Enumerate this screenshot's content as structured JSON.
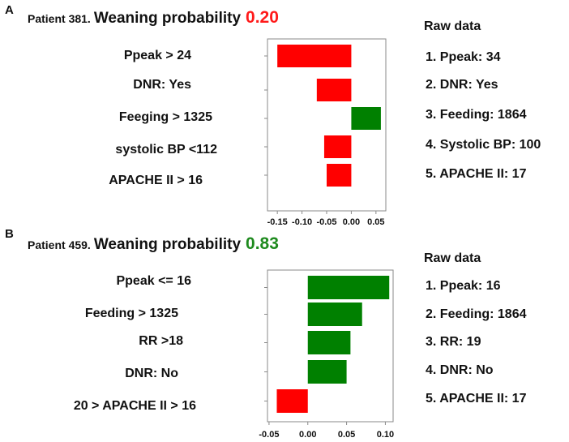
{
  "colors": {
    "negative": "#ff0000",
    "positive": "#008000",
    "frame": "#8a8a8a"
  },
  "panels": [
    {
      "letter": "A",
      "patient": "Patient 381.",
      "weaning_text": "Weaning probability",
      "probability": "0.20",
      "probability_color": "#ff1a1a",
      "features": [
        "Ppeak > 24",
        "DNR: Yes",
        "Feeging > 1325",
        "systolic BP <112",
        "APACHE II > 16"
      ],
      "raw_title": "Raw data",
      "raw_items": [
        "1. Ppeak: 34",
        "2. DNR: Yes",
        "3. Feeding: 1864",
        "4. Systolic BP: 100",
        "5. APACHE II: 17"
      ]
    },
    {
      "letter": "B",
      "patient": "Patient 459.",
      "weaning_text": "Weaning probability",
      "probability": "0.83",
      "probability_color": "#1e8a1e",
      "features": [
        "Ppeak <= 16",
        "Feeding > 1325",
        "RR >18",
        "DNR: No",
        "20 > APACHE II > 16"
      ],
      "raw_title": "Raw data",
      "raw_items": [
        "1. Ppeak: 16",
        "2. Feeding: 1864",
        "3. RR: 19",
        "4. DNR: No",
        "5. APACHE II: 17"
      ]
    }
  ],
  "chart_data": [
    {
      "type": "bar",
      "orientation": "horizontal",
      "categories": [
        "Ppeak > 24",
        "DNR: Yes",
        "Feeging > 1325",
        "systolic BP <112",
        "APACHE II > 16"
      ],
      "values": [
        -0.15,
        -0.07,
        0.06,
        -0.055,
        -0.05
      ],
      "xlim": [
        -0.17,
        0.07
      ],
      "xticks": [
        -0.15,
        -0.1,
        -0.05,
        0.0,
        0.05
      ],
      "xtick_labels": [
        "-0.15",
        "-0.10",
        "-0.05",
        "0.00",
        "0.05"
      ]
    },
    {
      "type": "bar",
      "orientation": "horizontal",
      "categories": [
        "Ppeak <= 16",
        "Feeding > 1325",
        "RR >18",
        "DNR: No",
        "20 > APACHE II > 16"
      ],
      "values": [
        0.105,
        0.07,
        0.055,
        0.05,
        -0.04
      ],
      "xlim": [
        -0.052,
        0.11
      ],
      "xticks": [
        -0.05,
        0.0,
        0.05,
        0.1
      ],
      "xtick_labels": [
        "-0.05",
        "0.00",
        "0.05",
        "0.10"
      ]
    }
  ]
}
